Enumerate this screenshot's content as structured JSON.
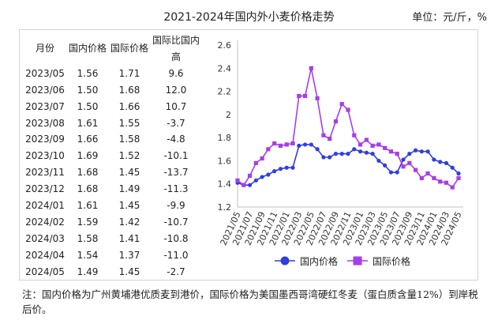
{
  "title": "2021-2024年国内外小麦价格走势",
  "unit": "单位：元/斤，%",
  "table": {
    "headers": [
      "月份",
      "国内价格",
      "国际价格",
      "国际比国内高"
    ],
    "rows": [
      [
        "2023/05",
        "1.56",
        "1.71",
        "9.6"
      ],
      [
        "2023/06",
        "1.50",
        "1.68",
        "12.0"
      ],
      [
        "2023/07",
        "1.50",
        "1.66",
        "10.7"
      ],
      [
        "2023/08",
        "1.61",
        "1.55",
        "-3.7"
      ],
      [
        "2023/09",
        "1.66",
        "1.58",
        "-4.8"
      ],
      [
        "2023/10",
        "1.69",
        "1.52",
        "-10.1"
      ],
      [
        "2023/11",
        "1.68",
        "1.45",
        "-13.7"
      ],
      [
        "2023/12",
        "1.68",
        "1.49",
        "-11.3"
      ],
      [
        "2024/01",
        "1.61",
        "1.45",
        "-9.9"
      ],
      [
        "2024/02",
        "1.59",
        "1.42",
        "-10.7"
      ],
      [
        "2024/03",
        "1.58",
        "1.41",
        "-10.8"
      ],
      [
        "2024/04",
        "1.54",
        "1.37",
        "-11.0"
      ],
      [
        "2024/05",
        "1.49",
        "1.45",
        "-2.7"
      ]
    ]
  },
  "chart_data": {
    "type": "line",
    "x": [
      "2021/05",
      "2021/06",
      "2021/07",
      "2021/08",
      "2021/09",
      "2021/10",
      "2021/11",
      "2021/12",
      "2022/01",
      "2022/02",
      "2022/03",
      "2022/04",
      "2022/05",
      "2022/06",
      "2022/07",
      "2022/08",
      "2022/09",
      "2022/10",
      "2022/11",
      "2022/12",
      "2023/01",
      "2023/02",
      "2023/03",
      "2023/04",
      "2023/05",
      "2023/06",
      "2023/07",
      "2023/08",
      "2023/09",
      "2023/10",
      "2023/11",
      "2023/12",
      "2024/01",
      "2024/02",
      "2024/03",
      "2024/04",
      "2024/05"
    ],
    "x_tick_labels": [
      "2021/05",
      "2021/07",
      "2021/09",
      "2021/11",
      "2022/01",
      "2022/03",
      "2022/05",
      "2022/07",
      "2022/09",
      "2022/11",
      "2023/01",
      "2023/03",
      "2023/05",
      "2023/07",
      "2023/09",
      "2023/11",
      "2024/01",
      "2024/03",
      "2024/05"
    ],
    "series": [
      {
        "name": "国内价格",
        "color": "#2e3ee0",
        "marker": "circle",
        "values": [
          1.41,
          1.39,
          1.39,
          1.43,
          1.46,
          1.48,
          1.51,
          1.53,
          1.54,
          1.54,
          1.73,
          1.74,
          1.74,
          1.7,
          1.63,
          1.63,
          1.66,
          1.66,
          1.66,
          1.7,
          1.68,
          1.67,
          1.66,
          1.6,
          1.56,
          1.5,
          1.5,
          1.61,
          1.66,
          1.69,
          1.68,
          1.68,
          1.61,
          1.59,
          1.58,
          1.54,
          1.49
        ]
      },
      {
        "name": "国际价格",
        "color": "#a63ee8",
        "marker": "square",
        "values": [
          1.43,
          1.39,
          1.47,
          1.58,
          1.62,
          1.7,
          1.75,
          1.73,
          1.74,
          1.75,
          2.16,
          2.16,
          2.4,
          2.14,
          1.82,
          1.79,
          1.94,
          2.09,
          2.04,
          1.82,
          1.74,
          1.78,
          1.73,
          1.74,
          1.71,
          1.68,
          1.66,
          1.55,
          1.58,
          1.52,
          1.45,
          1.49,
          1.45,
          1.42,
          1.41,
          1.37,
          1.45
        ]
      }
    ],
    "ylim": [
      1.2,
      2.6
    ],
    "yticks": [
      "1.2",
      "1.4",
      "1.6",
      "1.8",
      "2",
      "2.2",
      "2.4",
      "2.6"
    ],
    "legend": "bottom",
    "grid": false
  },
  "note": "注：国内价格为广州黄埔港优质麦到港价，国际价格为美国墨西哥湾硬红冬麦（蛋白质含量12%）到岸税后价。"
}
